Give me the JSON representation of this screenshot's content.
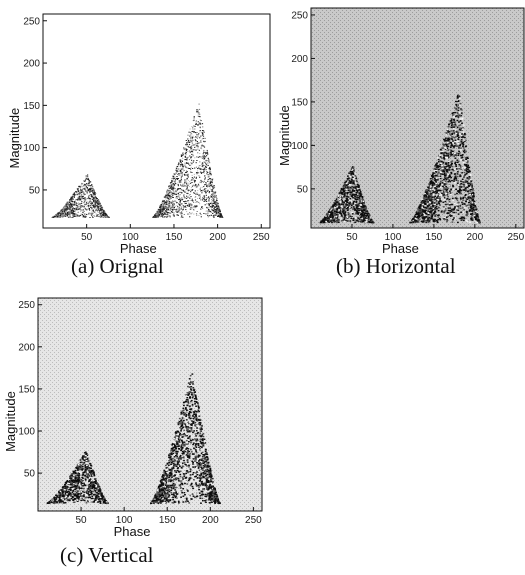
{
  "figure": {
    "panels": [
      {
        "caption": "(a)  Orignal"
      },
      {
        "caption": "(b)  Horizontal"
      },
      {
        "caption": "(c)  Vertical"
      }
    ]
  },
  "chart_data": [
    {
      "type": "scatter",
      "title": "(a)  Orignal",
      "xlabel": "Phase",
      "ylabel": "Magnitude",
      "xlim": [
        0,
        260
      ],
      "ylim": [
        5,
        258
      ],
      "xticks": [
        50,
        100,
        150,
        200,
        250
      ],
      "yticks": [
        50,
        100,
        150,
        200,
        250
      ],
      "background": "white",
      "clusters": [
        {
          "x_range": [
            10,
            75
          ],
          "peak_x": 50,
          "peak_y": 70,
          "base_y": 18
        },
        {
          "x_range": [
            125,
            205
          ],
          "peak_x": 178,
          "peak_y": 155,
          "base_y": 18
        }
      ]
    },
    {
      "type": "scatter",
      "title": "(b)  Horizontal",
      "xlabel": "Phase",
      "ylabel": "Magnitude",
      "xlim": [
        0,
        260
      ],
      "ylim": [
        5,
        258
      ],
      "xticks": [
        50,
        100,
        150,
        200,
        250
      ],
      "yticks": [
        50,
        100,
        150,
        200,
        250
      ],
      "background": "gray-textured",
      "clusters": [
        {
          "x_range": [
            10,
            75
          ],
          "peak_x": 50,
          "peak_y": 78,
          "base_y": 12
        },
        {
          "x_range": [
            120,
            205
          ],
          "peak_x": 180,
          "peak_y": 165,
          "base_y": 12
        }
      ]
    },
    {
      "type": "scatter",
      "title": "(c)  Vertical",
      "xlabel": "Phase",
      "ylabel": "Magnitude",
      "xlim": [
        0,
        260
      ],
      "ylim": [
        5,
        258
      ],
      "xticks": [
        50,
        100,
        150,
        200,
        250
      ],
      "yticks": [
        50,
        100,
        150,
        200,
        250
      ],
      "background": "light-gray-textured",
      "clusters": [
        {
          "x_range": [
            10,
            80
          ],
          "peak_x": 55,
          "peak_y": 78,
          "base_y": 15
        },
        {
          "x_range": [
            130,
            210
          ],
          "peak_x": 178,
          "peak_y": 175,
          "base_y": 15
        }
      ]
    }
  ]
}
